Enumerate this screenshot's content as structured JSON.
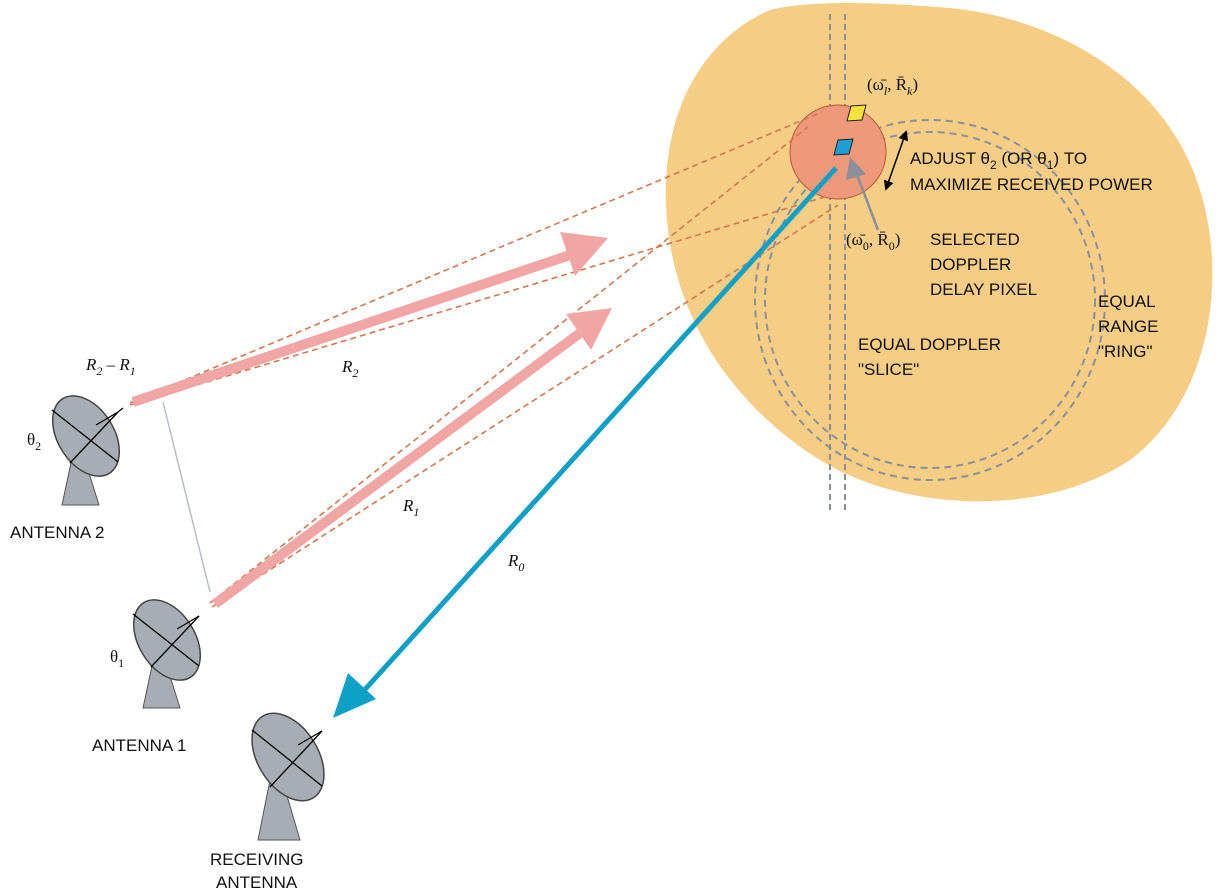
{
  "labels": {
    "antenna_2": "ANTENNA 2",
    "antenna_1": "ANTENNA 1",
    "receiving_line1": "RECEIVING",
    "receiving_line2": "ANTENNA",
    "equal_doppler_line1": "EQUAL DOPPLER",
    "equal_doppler_line2": "\"SLICE\"",
    "equal_range_line1": "EQUAL",
    "equal_range_line2": "RANGE",
    "equal_range_line3": "\"RING\"",
    "selected_line1": "SELECTED",
    "selected_line2": "DOPPLER",
    "selected_line3": "DELAY PIXEL",
    "adjust_line1_a": "ADJUST θ",
    "adjust_line1_sub": "2",
    "adjust_line1_b": " (OR θ",
    "adjust_line1_sub2": "1",
    "adjust_line1_c": ") TO",
    "adjust_line2": "MAXIMIZE RECEIVED POWER"
  },
  "math": {
    "r0": "R",
    "r0_sub": "0",
    "r1": "R",
    "r1_sub": "1",
    "r2": "R",
    "r2_sub": "2",
    "r2_minus_r1_a": "R",
    "r2_minus_r1_sub_a": "2",
    "r2_minus_r1_minus": " – ",
    "r2_minus_r1_b": "R",
    "r2_minus_r1_sub_b": "1",
    "theta2": "θ",
    "theta2_sub": "2",
    "theta1": "θ",
    "theta1_sub": "1",
    "pixel_lk": "(ω̄",
    "pixel_lk_sub1": "l",
    "pixel_lk_mid": ", R̄",
    "pixel_lk_sub2": "k",
    "pixel_lk_end": ")",
    "pixel_00": "(ω̄",
    "pixel_00_sub1": "0",
    "pixel_00_mid": ", R̄",
    "pixel_00_sub2": "0",
    "pixel_00_end": ")"
  },
  "colors": {
    "target_disc": "#f5cd84",
    "footprint": "#ee9a7a",
    "transmit_beam": "#f1a6a6",
    "receive_beam": "#0ea0c7",
    "antenna": "#a8acb4",
    "pixel_selected": "#1e9fd6",
    "pixel_lk": "#f7e33a",
    "dashed_ring": "#8a8f99"
  }
}
